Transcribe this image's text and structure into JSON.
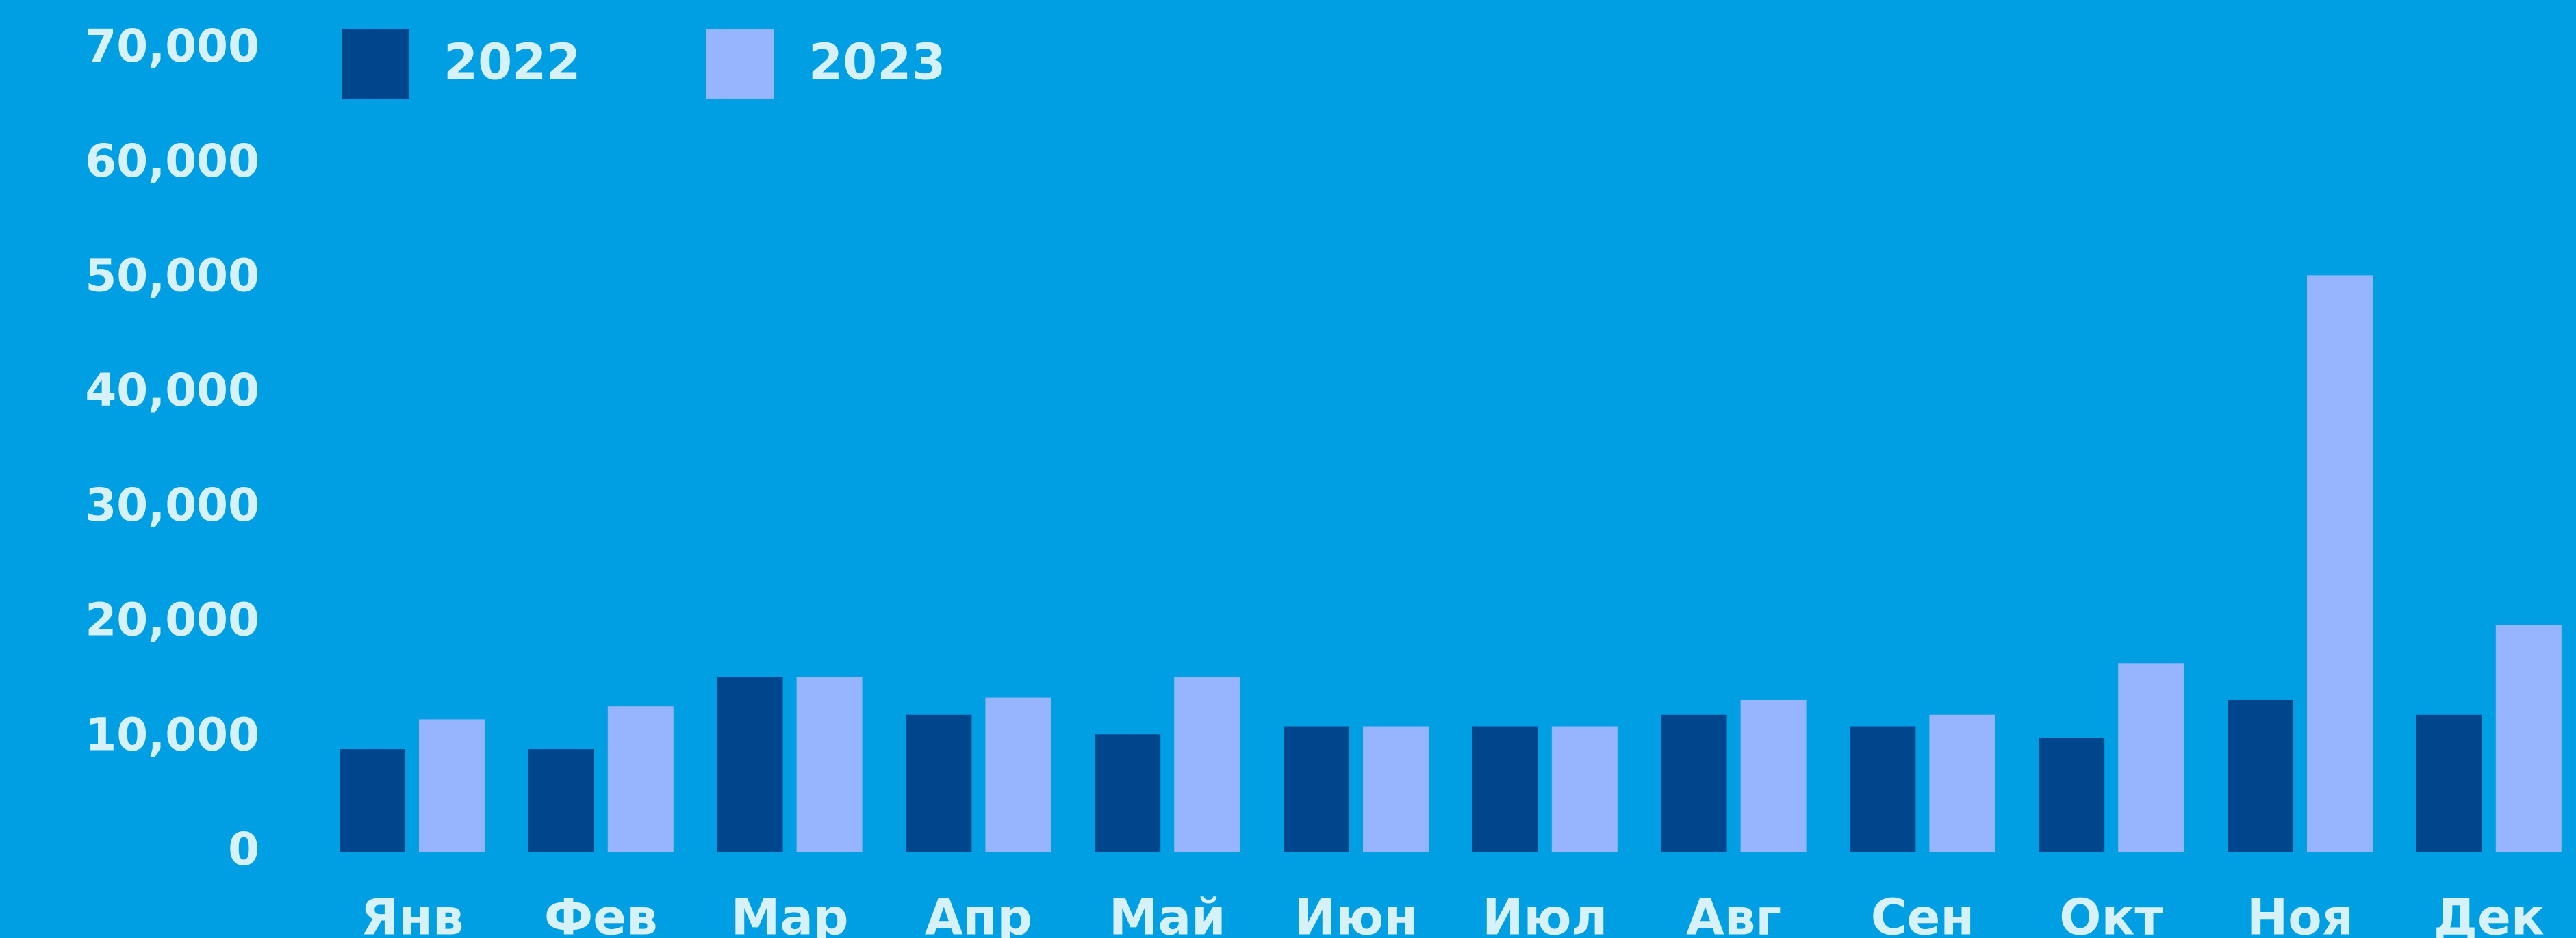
{
  "chart_data": {
    "type": "bar",
    "categories": [
      "Янв",
      "Фев",
      "Мар",
      "Апр",
      "Май",
      "Июн",
      "Июл",
      "Авг",
      "Сен",
      "Окт",
      "Ноя",
      "Дек"
    ],
    "series": [
      {
        "name": "2022",
        "color": "#00468c",
        "values": [
          9000,
          9000,
          15300,
          12000,
          10300,
          11000,
          11000,
          12000,
          11000,
          10000,
          13300,
          12000
        ]
      },
      {
        "name": "2023",
        "color": "#96b4ff",
        "values": [
          11600,
          12750,
          15300,
          13500,
          15300,
          11000,
          11000,
          13300,
          12000,
          16500,
          50300,
          19800
        ]
      }
    ],
    "ylim": [
      0,
      70000
    ],
    "yticks": [
      0,
      {
        "value": 10000,
        "label": "10,000"
      },
      {
        "value": 20000,
        "label": "20,000"
      },
      {
        "value": 30000,
        "label": "30,000"
      },
      {
        "value": 40000,
        "label": "40,000"
      },
      {
        "value": 50000,
        "label": "50,000"
      },
      {
        "value": 60000,
        "label": "60,000"
      },
      {
        "value": 70000,
        "label": "70,000"
      }
    ],
    "grid": false,
    "legend": "top-left"
  }
}
